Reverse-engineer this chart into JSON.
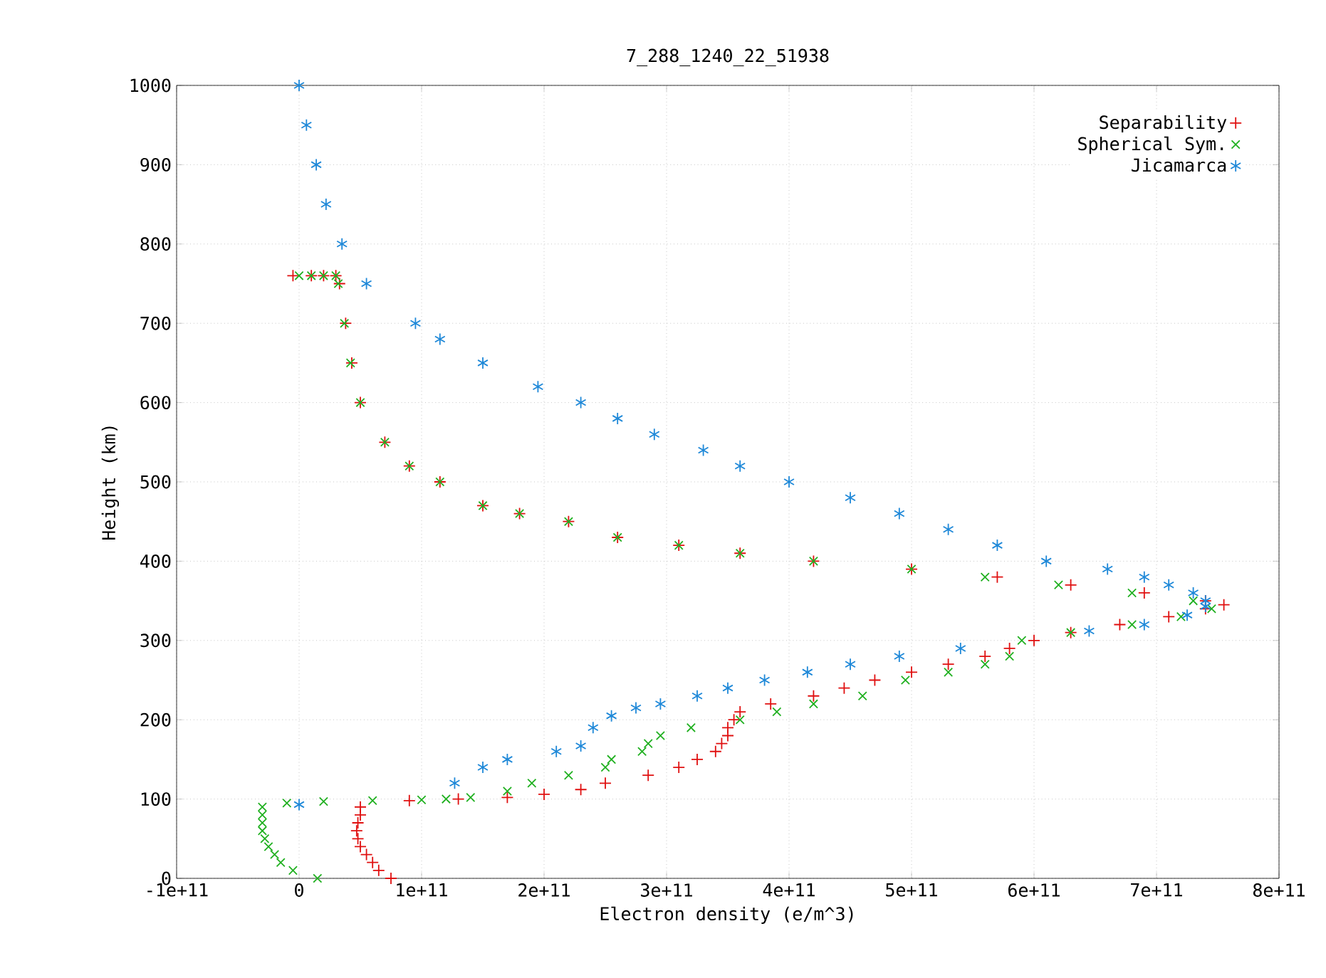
{
  "chart_data": {
    "type": "scatter",
    "title": "7_288_1240_22_51938",
    "xlabel": "Electron density (e/m^3)",
    "ylabel": "Height (km)",
    "xlim": [
      -100000000000.0,
      800000000000.0
    ],
    "ylim": [
      0,
      1000
    ],
    "xticks": [
      {
        "value": -100000000000.0,
        "label": "-1e+11"
      },
      0,
      {
        "value": 100000000000.0,
        "label": "1e+11"
      },
      {
        "value": 200000000000.0,
        "label": "2e+11"
      },
      {
        "value": 300000000000.0,
        "label": "3e+11"
      },
      {
        "value": 400000000000.0,
        "label": "4e+11"
      },
      {
        "value": 500000000000.0,
        "label": "5e+11"
      },
      {
        "value": 600000000000.0,
        "label": "6e+11"
      },
      {
        "value": 700000000000.0,
        "label": "7e+11"
      },
      {
        "value": 800000000000.0,
        "label": "8e+11"
      }
    ],
    "yticks": [
      0,
      100,
      200,
      300,
      400,
      500,
      600,
      700,
      800,
      900,
      1000
    ],
    "grid": true,
    "legend": "top right",
    "series": [
      {
        "name": "Separability",
        "color": "#e01010",
        "x": [
          75000000000.0,
          65000000000.0,
          60000000000.0,
          55000000000.0,
          50000000000.0,
          48000000000.0,
          47000000000.0,
          48000000000.0,
          50000000000.0,
          50000000000.0,
          90000000000.0,
          130000000000.0,
          170000000000.0,
          200000000000.0,
          230000000000.0,
          250000000000.0,
          285000000000.0,
          310000000000.0,
          325000000000.0,
          340000000000.0,
          345000000000.0,
          350000000000.0,
          350000000000.0,
          355000000000.0,
          360000000000.0,
          385000000000.0,
          420000000000.0,
          445000000000.0,
          470000000000.0,
          500000000000.0,
          530000000000.0,
          560000000000.0,
          580000000000.0,
          600000000000.0,
          630000000000.0,
          670000000000.0,
          710000000000.0,
          740000000000.0,
          755000000000.0,
          740000000000.0,
          690000000000.0,
          630000000000.0,
          570000000000.0,
          500000000000.0,
          420000000000.0,
          360000000000.0,
          310000000000.0,
          260000000000.0,
          220000000000.0,
          180000000000.0,
          150000000000.0,
          115000000000.0,
          90000000000.0,
          70000000000.0,
          50000000000.0,
          43000000000.0,
          38000000000.0,
          33000000000.0,
          30000000000.0,
          20000000000.0,
          10000000000.0,
          -5000000000.0
        ],
        "values": [
          0,
          10,
          20,
          30,
          40,
          50,
          60,
          70,
          80,
          90,
          98,
          100,
          102,
          106,
          112,
          120,
          130,
          140,
          150,
          160,
          170,
          180,
          190,
          200,
          210,
          220,
          230,
          240,
          250,
          260,
          270,
          280,
          290,
          300,
          310,
          320,
          330,
          340,
          345,
          350,
          360,
          370,
          380,
          390,
          400,
          410,
          420,
          430,
          450,
          460,
          470,
          500,
          520,
          550,
          600,
          650,
          700,
          750,
          760,
          760,
          760,
          760
        ]
      },
      {
        "name": "Spherical Sym.",
        "color": "#20b020",
        "x": [
          15000000000.0,
          -5000000000.0,
          -15000000000.0,
          -20000000000.0,
          -25000000000.0,
          -28000000000.0,
          -30000000000.0,
          -30000000000.0,
          -30000000000.0,
          -30000000000.0,
          -10000000000.0,
          20000000000.0,
          60000000000.0,
          100000000000.0,
          120000000000.0,
          140000000000.0,
          170000000000.0,
          190000000000.0,
          220000000000.0,
          250000000000.0,
          255000000000.0,
          280000000000.0,
          285000000000.0,
          295000000000.0,
          320000000000.0,
          360000000000.0,
          390000000000.0,
          420000000000.0,
          460000000000.0,
          495000000000.0,
          530000000000.0,
          560000000000.0,
          580000000000.0,
          590000000000.0,
          630000000000.0,
          680000000000.0,
          720000000000.0,
          745000000000.0,
          730000000000.0,
          680000000000.0,
          620000000000.0,
          560000000000.0,
          500000000000.0,
          420000000000.0,
          360000000000.0,
          310000000000.0,
          260000000000.0,
          220000000000.0,
          180000000000.0,
          150000000000.0,
          115000000000.0,
          90000000000.0,
          70000000000.0,
          50000000000.0,
          42000000000.0,
          37000000000.0,
          32000000000.0,
          30000000000.0,
          20000000000.0,
          10000000000.0,
          0.0
        ],
        "values": [
          0,
          10,
          20,
          30,
          40,
          50,
          60,
          70,
          80,
          90,
          95,
          97,
          98,
          99,
          100,
          102,
          110,
          120,
          130,
          140,
          150,
          160,
          170,
          180,
          190,
          200,
          210,
          220,
          230,
          250,
          260,
          270,
          280,
          300,
          310,
          320,
          330,
          340,
          350,
          360,
          370,
          380,
          390,
          400,
          410,
          420,
          430,
          450,
          460,
          470,
          500,
          520,
          550,
          600,
          650,
          700,
          750,
          760,
          760,
          760,
          760
        ]
      },
      {
        "name": "Jicamarca",
        "color": "#1e88d8",
        "x": [
          0.0,
          127000000000.0,
          150000000000.0,
          170000000000.0,
          210000000000.0,
          230000000000.0,
          240000000000.0,
          255000000000.0,
          275000000000.0,
          295000000000.0,
          325000000000.0,
          350000000000.0,
          380000000000.0,
          415000000000.0,
          450000000000.0,
          490000000000.0,
          540000000000.0,
          645000000000.0,
          690000000000.0,
          725000000000.0,
          740000000000.0,
          740000000000.0,
          730000000000.0,
          710000000000.0,
          690000000000.0,
          660000000000.0,
          610000000000.0,
          570000000000.0,
          530000000000.0,
          490000000000.0,
          450000000000.0,
          400000000000.0,
          360000000000.0,
          330000000000.0,
          290000000000.0,
          260000000000.0,
          230000000000.0,
          195000000000.0,
          150000000000.0,
          115000000000.0,
          95000000000.0,
          55000000000.0,
          35000000000.0,
          22000000000.0,
          14000000000.0,
          6000000000.0,
          0.0
        ],
        "values": [
          93,
          120,
          140,
          150,
          160,
          167,
          190,
          205,
          215,
          220,
          230,
          240,
          250,
          260,
          270,
          280,
          290,
          312,
          320,
          332,
          343,
          350,
          360,
          370,
          380,
          390,
          400,
          420,
          440,
          460,
          480,
          500,
          520,
          540,
          560,
          580,
          600,
          620,
          650,
          680,
          700,
          750,
          800,
          850,
          900,
          950,
          1000
        ]
      }
    ]
  }
}
